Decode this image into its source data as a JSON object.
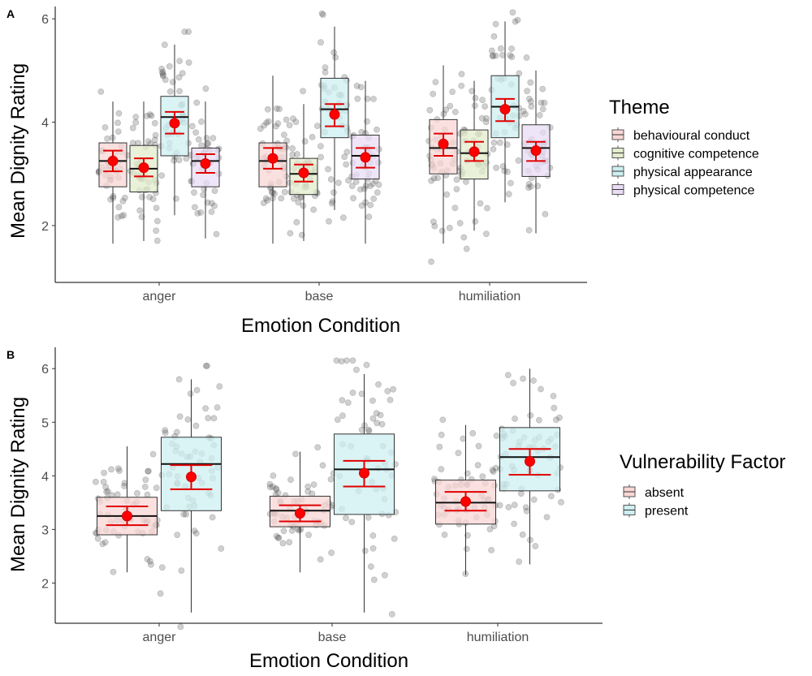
{
  "chart_data": [
    {
      "panel": "A",
      "type": "box",
      "xlabel": "Emotion Condition",
      "ylabel": "Mean Dignity Rating",
      "ylim": [
        0.9,
        6.05
      ],
      "yticks": [
        2,
        4,
        6
      ],
      "categories": [
        "anger",
        "base",
        "humiliation"
      ],
      "legend": {
        "title": "Theme",
        "placement": "right",
        "entries": [
          "behavioural conduct",
          "cognitive competence",
          "physical appearance",
          "physical competence"
        ]
      },
      "series": [
        {
          "name": "behavioural conduct",
          "fill": "#f8d7d5",
          "boxes": [
            {
              "category": "anger",
              "whisker_low": 1.65,
              "q1": 2.75,
              "median": 3.25,
              "q3": 3.6,
              "whisker_high": 4.4,
              "mean": 3.25,
              "ci": [
                3.05,
                3.45
              ]
            },
            {
              "category": "base",
              "whisker_low": 1.65,
              "q1": 2.75,
              "median": 3.25,
              "q3": 3.6,
              "whisker_high": 4.9,
              "mean": 3.3,
              "ci": [
                3.1,
                3.5
              ]
            },
            {
              "category": "humiliation",
              "whisker_low": 1.65,
              "q1": 3.0,
              "median": 3.5,
              "q3": 4.05,
              "whisker_high": 5.1,
              "mean": 3.58,
              "ci": [
                3.35,
                3.78
              ]
            }
          ]
        },
        {
          "name": "cognitive competence",
          "fill": "#e3eccc",
          "boxes": [
            {
              "category": "anger",
              "whisker_low": 1.7,
              "q1": 2.65,
              "median": 3.1,
              "q3": 3.55,
              "whisker_high": 4.4,
              "mean": 3.12,
              "ci": [
                2.95,
                3.3
              ]
            },
            {
              "category": "base",
              "whisker_low": 1.7,
              "q1": 2.6,
              "median": 3.0,
              "q3": 3.3,
              "whisker_high": 4.35,
              "mean": 3.02,
              "ci": [
                2.85,
                3.18
              ]
            },
            {
              "category": "humiliation",
              "whisker_low": 1.9,
              "q1": 2.9,
              "median": 3.4,
              "q3": 3.85,
              "whisker_high": 4.8,
              "mean": 3.43,
              "ci": [
                3.25,
                3.62
              ]
            }
          ]
        },
        {
          "name": "physical appearance",
          "fill": "#cdeff0",
          "boxes": [
            {
              "category": "anger",
              "whisker_low": 2.2,
              "q1": 3.35,
              "median": 4.1,
              "q3": 4.5,
              "whisker_high": 5.5,
              "mean": 3.98,
              "ci": [
                3.78,
                4.2
              ]
            },
            {
              "category": "base",
              "whisker_low": 2.3,
              "q1": 3.7,
              "median": 4.25,
              "q3": 4.85,
              "whisker_high": 5.85,
              "mean": 4.15,
              "ci": [
                3.92,
                4.35
              ]
            },
            {
              "category": "humiliation",
              "whisker_low": 2.45,
              "q1": 3.7,
              "median": 4.3,
              "q3": 4.9,
              "whisker_high": 5.95,
              "mean": 4.25,
              "ci": [
                4.02,
                4.45
              ]
            }
          ]
        },
        {
          "name": "physical competence",
          "fill": "#eadcf5",
          "boxes": [
            {
              "category": "anger",
              "whisker_low": 1.75,
              "q1": 2.75,
              "median": 3.25,
              "q3": 3.5,
              "whisker_high": 4.4,
              "mean": 3.2,
              "ci": [
                3.02,
                3.38
              ]
            },
            {
              "category": "base",
              "whisker_low": 1.65,
              "q1": 2.9,
              "median": 3.35,
              "q3": 3.75,
              "whisker_high": 4.8,
              "mean": 3.32,
              "ci": [
                3.12,
                3.5
              ]
            },
            {
              "category": "humiliation",
              "whisker_low": 1.85,
              "q1": 2.95,
              "median": 3.5,
              "q3": 3.95,
              "whisker_high": 5.0,
              "mean": 3.45,
              "ci": [
                3.25,
                3.62
              ]
            }
          ]
        }
      ]
    },
    {
      "panel": "B",
      "type": "box",
      "xlabel": "Emotion Condition",
      "ylabel": "Mean Dignity Rating",
      "ylim": [
        1.25,
        6.2
      ],
      "yticks": [
        2,
        3,
        4,
        5,
        6
      ],
      "categories": [
        "anger",
        "base",
        "humiliation"
      ],
      "legend": {
        "title": "Vulnerability Factor",
        "placement": "right",
        "entries": [
          "absent",
          "present"
        ]
      },
      "series": [
        {
          "name": "absent",
          "fill": "#f8d7d5",
          "boxes": [
            {
              "category": "anger",
              "whisker_low": 2.2,
              "q1": 2.9,
              "median": 3.25,
              "q3": 3.6,
              "whisker_high": 4.55,
              "mean": 3.25,
              "ci": [
                3.08,
                3.43
              ]
            },
            {
              "category": "base",
              "whisker_low": 2.2,
              "q1": 3.05,
              "median": 3.35,
              "q3": 3.62,
              "whisker_high": 4.45,
              "mean": 3.3,
              "ci": [
                3.15,
                3.45
              ]
            },
            {
              "category": "humiliation",
              "whisker_low": 2.15,
              "q1": 3.1,
              "median": 3.5,
              "q3": 3.92,
              "whisker_high": 4.95,
              "mean": 3.52,
              "ci": [
                3.35,
                3.7
              ]
            }
          ]
        },
        {
          "name": "present",
          "fill": "#cdeff0",
          "boxes": [
            {
              "category": "anger",
              "whisker_low": 1.45,
              "q1": 3.35,
              "median": 4.22,
              "q3": 4.72,
              "whisker_high": 5.8,
              "mean": 3.98,
              "ci": [
                3.75,
                4.2
              ]
            },
            {
              "category": "base",
              "whisker_low": 1.45,
              "q1": 3.28,
              "median": 4.12,
              "q3": 4.78,
              "whisker_high": 5.9,
              "mean": 4.05,
              "ci": [
                3.8,
                4.28
              ]
            },
            {
              "category": "humiliation",
              "whisker_low": 2.35,
              "q1": 3.72,
              "median": 4.35,
              "q3": 4.9,
              "whisker_high": 6.0,
              "mean": 4.27,
              "ci": [
                4.02,
                4.5
              ]
            }
          ]
        }
      ]
    }
  ]
}
